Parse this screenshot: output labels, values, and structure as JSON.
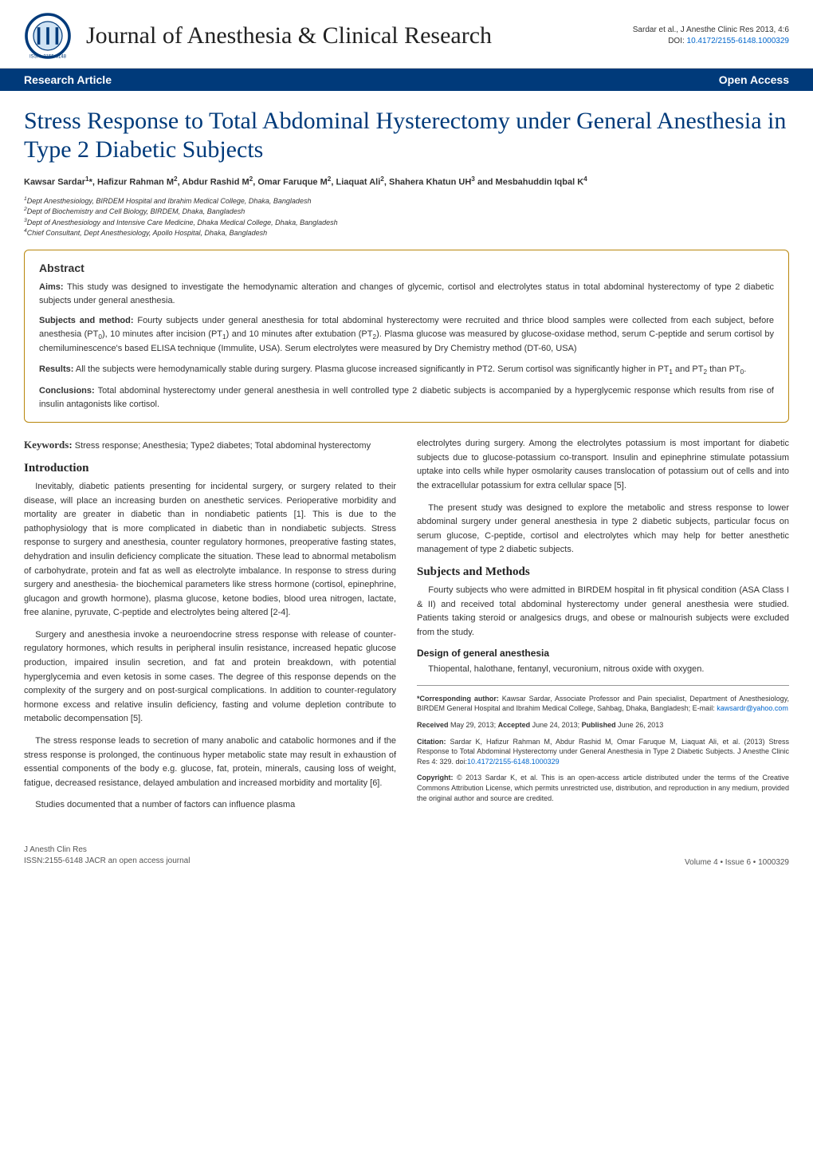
{
  "header": {
    "journal_title": "Journal of Anesthesia & Clinical Research",
    "citation": "Sardar et al., J Anesthe Clinic Res 2013, 4:6",
    "doi_label": "DOI:",
    "doi": "10.4172/2155-6148.1000329",
    "band_left": "Research Article",
    "band_right": "Open Access"
  },
  "paper": {
    "title": "Stress Response to Total Abdominal Hysterectomy under General Anesthesia in Type 2 Diabetic Subjects",
    "authors_html": "Kawsar Sardar<sup>1</sup>*, Hafizur Rahman M<sup>2</sup>, Abdur Rashid M<sup>2</sup>, Omar Faruque M<sup>2</sup>, Liaquat Ali<sup>2</sup>, Shahera Khatun UH<sup>3</sup> and Mesbahuddin Iqbal K<sup>4</sup>",
    "affiliations": [
      "<sup>1</sup>Dept Anesthesiology, BIRDEM Hospital and Ibrahim Medical College, Dhaka, Bangladesh",
      "<sup>2</sup>Dept of Biochemistry and Cell Biology, BIRDEM, Dhaka, Bangladesh",
      "<sup>3</sup>Dept of Anesthesiology and Intensive Care Medicine, Dhaka Medical College, Dhaka, Bangladesh",
      "<sup>4</sup>Chief Consultant, Dept Anesthesiology, Apollo Hospital, Dhaka, Bangladesh"
    ]
  },
  "abstract": {
    "heading": "Abstract",
    "paragraphs": [
      {
        "label": "Aims:",
        "text": " This study was designed to investigate the hemodynamic alteration and changes of glycemic, cortisol and electrolytes status in total abdominal hysterectomy of type 2 diabetic subjects under general anesthesia."
      },
      {
        "label": "Subjects and method:",
        "text": " Fourty subjects under general anesthesia for total abdominal hysterectomy were recruited and thrice blood samples were collected from each subject, before anesthesia (PT<sub>0</sub>), 10 minutes after incision (PT<sub>1</sub>) and 10 minutes after extubation (PT<sub>2</sub>). Plasma glucose was measured by glucose-oxidase method, serum C-peptide and serum cortisol by chemiluminescence's based ELISA technique (Immulite, USA). Serum electrolytes were measured by Dry Chemistry method (DT-60, USA)"
      },
      {
        "label": "Results:",
        "text": " All the subjects were hemodynamically stable during surgery. Plasma glucose increased significantly in PT2. Serum cortisol was significantly higher in PT<sub>1</sub> and PT<sub>2</sub> than PT<sub>0</sub>."
      },
      {
        "label": "Conclusions:",
        "text": " Total abdominal hysterectomy under general anesthesia in well controlled type 2 diabetic subjects is accompanied by a hyperglycemic response which results from rise of insulin antagonists like cortisol."
      }
    ]
  },
  "left_column": {
    "keywords_label": "Keywords:",
    "keywords_text": " Stress response; Anesthesia; Type2 diabetes; Total abdominal hysterectomy",
    "intro_heading": "Introduction",
    "intro_paras": [
      "Inevitably, diabetic patients presenting for incidental surgery, or surgery related to their disease, will place an increasing burden on anesthetic services. Perioperative morbidity and mortality are greater in diabetic than in nondiabetic patients [1]. This is due to the pathophysiology that is more complicated in diabetic than in nondiabetic subjects. Stress response to surgery and anesthesia, counter regulatory hormones, preoperative fasting states, dehydration and insulin deficiency complicate the situation. These lead to abnormal metabolism of carbohydrate, protein and fat as well as electrolyte imbalance. In response to stress during surgery and anesthesia- the biochemical parameters like stress hormone (cortisol, epinephrine, glucagon and growth hormone), plasma glucose, ketone bodies, blood urea nitrogen, lactate, free alanine, pyruvate, C-peptide and electrolytes being altered [2-4].",
      "Surgery and anesthesia invoke a neuroendocrine stress response with release of counter-regulatory hormones, which results in peripheral insulin resistance, increased hepatic glucose production, impaired insulin secretion, and fat and protein breakdown, with potential hyperglycemia and even ketosis in some cases. The degree of this response depends on the complexity of the surgery and on post-surgical complications. In addition to counter-regulatory hormone excess and relative insulin deficiency, fasting and volume depletion contribute to metabolic decompensation [5].",
      "The stress response leads to secretion of many anabolic and catabolic hormones and if the stress response is prolonged, the continuous hyper metabolic state may result in exhaustion of essential components of the body e.g. glucose, fat, protein, minerals, causing loss of weight, fatigue, decreased resistance, delayed ambulation and increased morbidity and mortality [6].",
      "Studies documented that a number of factors can influence plasma"
    ]
  },
  "right_column": {
    "lead_paras": [
      "electrolytes during surgery. Among the electrolytes potassium is most important for diabetic subjects due to glucose-potassium co-transport. Insulin and epinephrine stimulate potassium uptake into cells while hyper osmolarity causes translocation of potassium out of cells and into the extracellular potassium for extra cellular space [5].",
      "The present study was designed to explore the metabolic and stress response to lower abdominal surgery under general anesthesia in type 2 diabetic subjects, particular focus on serum glucose, C-peptide, cortisol and electrolytes which may help for better anesthetic management of type 2 diabetic subjects."
    ],
    "subjects_heading": "Subjects and Methods",
    "subjects_para": "Fourty subjects who were admitted in BIRDEM hospital in fit physical condition (ASA Class I & II) and received total abdominal hysterectomy under general anesthesia were studied. Patients taking steroid or analgesics drugs, and obese or malnourish subjects were excluded from the study.",
    "design_heading": "Design of general anesthesia",
    "design_para": "Thiopental, halothane, fentanyl, vecuronium, nitrous oxide with oxygen.",
    "corresponding": "<strong>*Corresponding author:</strong> Kawsar Sardar, Associate Professor and Pain specialist, Department of Anesthesiology, BIRDEM General Hospital and Ibrahim Medical College, Sahbag, Dhaka, Bangladesh; E-mail: <span class=\"email-link\">kawsardr@yahoo.com</span>",
    "received": "<strong>Received</strong> May 29, 2013; <strong>Accepted</strong> June 24, 2013; <strong>Published</strong> June 26, 2013",
    "citation_block": "<strong>Citation:</strong> Sardar K, Hafizur Rahman M, Abdur Rashid M, Omar Faruque M, Liaquat Ali, et al. (2013) Stress Response to Total Abdominal Hysterectomy under General Anesthesia in Type 2 Diabetic Subjects. J Anesthe Clinic Res 4: 329. doi:<span class=\"email-link\">10.4172/2155-6148.1000329</span>",
    "copyright": "<strong>Copyright:</strong> © 2013 Sardar K, et al. This is an open-access article distributed under the terms of the Creative Commons Attribution License, which permits unrestricted use, distribution, and reproduction in any medium, provided the original author and source are credited."
  },
  "footer": {
    "left_line1": "J Anesth Clin Res",
    "left_line2": "ISSN:2155-6148 JACR an open access journal",
    "right": "Volume 4 • Issue 6 • 1000329"
  },
  "colors": {
    "band_bg": "#003a7a",
    "title_color": "#003a7a",
    "link_color": "#0066cc",
    "abstract_border": "#b8860b"
  }
}
